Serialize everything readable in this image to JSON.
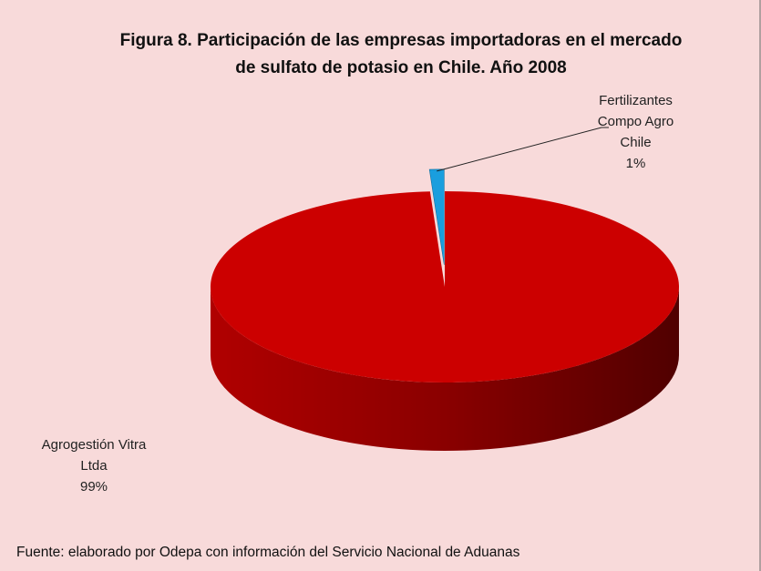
{
  "chart_data": {
    "type": "pie3d",
    "title": "Figura 8. Participación de las empresas importadoras en el mercado de sulfato de potasio en Chile. Año 2008",
    "categories": [
      "Agrogestión Vitra Ltda",
      "Fertilizantes Compo Agro Chile"
    ],
    "values": [
      99,
      1
    ],
    "value_labels": [
      "99%",
      "1%"
    ],
    "colors": [
      "#cc0000",
      "#1a9ede"
    ],
    "source": "Fuente: elaborado por Odepa con información del Servicio Nacional de Aduanas"
  }
}
